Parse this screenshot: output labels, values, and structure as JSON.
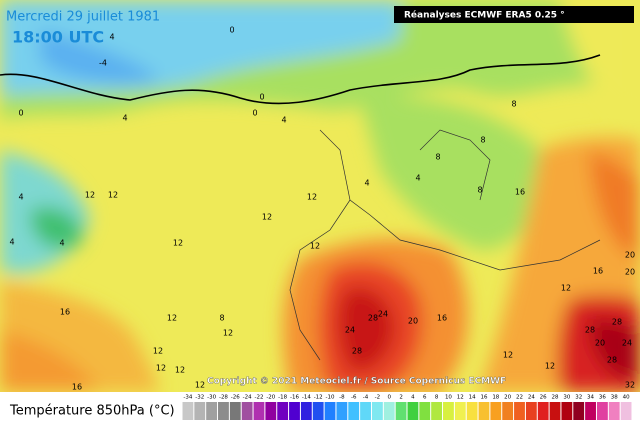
{
  "header": {
    "title": "Mercredi 29 juillet 1981",
    "time": "18:00 UTC",
    "source": "Réanalyses ECMWF ERA5 0.25 °",
    "copyright": "Copyright © 2021 Meteociel.fr / Source Copernicus ECMWF"
  },
  "map": {
    "contour_labels": [
      0,
      -4,
      4,
      0,
      0,
      0,
      4,
      4,
      4,
      4,
      4,
      8,
      8,
      8,
      4,
      4,
      8,
      12,
      12,
      12,
      12,
      12,
      12,
      16,
      16,
      20,
      20,
      12,
      16,
      20,
      24,
      28,
      24,
      28,
      16,
      12,
      12,
      12,
      12,
      12,
      16,
      12,
      12,
      28,
      28,
      20,
      24,
      32,
      28,
      8,
      12
    ]
  },
  "legend": {
    "title": "Température 850hPa (°C)",
    "ticks": [
      -34,
      -32,
      -30,
      -28,
      -26,
      -24,
      -22,
      -20,
      -18,
      -16,
      -14,
      -12,
      -10,
      -8,
      -6,
      -4,
      -2,
      0,
      2,
      4,
      6,
      8,
      10,
      12,
      14,
      16,
      18,
      20,
      22,
      24,
      26,
      28,
      30,
      32,
      34,
      36,
      38,
      40
    ],
    "colors": [
      "#c8c8c8",
      "#b4b4b4",
      "#a0a0a0",
      "#8c8c8c",
      "#787878",
      "#a050a0",
      "#b030b0",
      "#9000a0",
      "#7000c0",
      "#5000d0",
      "#3020e0",
      "#2050f0",
      "#2080ff",
      "#30a0ff",
      "#40c0ff",
      "#60d8f8",
      "#80e8f0",
      "#a0f0e0",
      "#60e070",
      "#40d040",
      "#80e040",
      "#b0e840",
      "#d8f040",
      "#f0f050",
      "#f8e040",
      "#f8c030",
      "#f8a020",
      "#f08020",
      "#f06020",
      "#e84020",
      "#e02020",
      "#c81010",
      "#b00010",
      "#900020",
      "#c00060",
      "#e040a0",
      "#f080c0",
      "#f0c0e0"
    ]
  }
}
